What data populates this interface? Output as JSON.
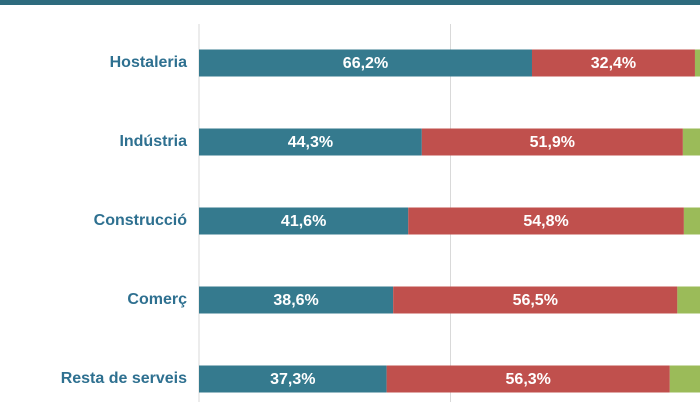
{
  "chart_data": {
    "type": "stacked-bar-horizontal",
    "categories": [
      "Hostaleria",
      "Indústria",
      "Construcció",
      "Comerç",
      "Resta de serveis"
    ],
    "series": [
      {
        "color": "#357a8e",
        "values": [
          66.2,
          44.3,
          41.6,
          38.6,
          37.3
        ],
        "value_labels": [
          "66,2%",
          "44,3%",
          "41,6%",
          "38,6%",
          "37,3%"
        ]
      },
      {
        "color": "#c0504d",
        "values": [
          32.4,
          51.9,
          54.8,
          56.5,
          56.3
        ],
        "value_labels": [
          "32,4%",
          "51,9%",
          "54,8%",
          "56,5%",
          "56,3%"
        ]
      },
      {
        "color": "#9bbb59",
        "values": [
          1.4,
          3.8,
          3.6,
          4.9,
          6.4
        ]
      }
    ],
    "xlim": [
      0,
      100
    ],
    "xticks": [
      0,
      50,
      100
    ],
    "grid": true
  }
}
